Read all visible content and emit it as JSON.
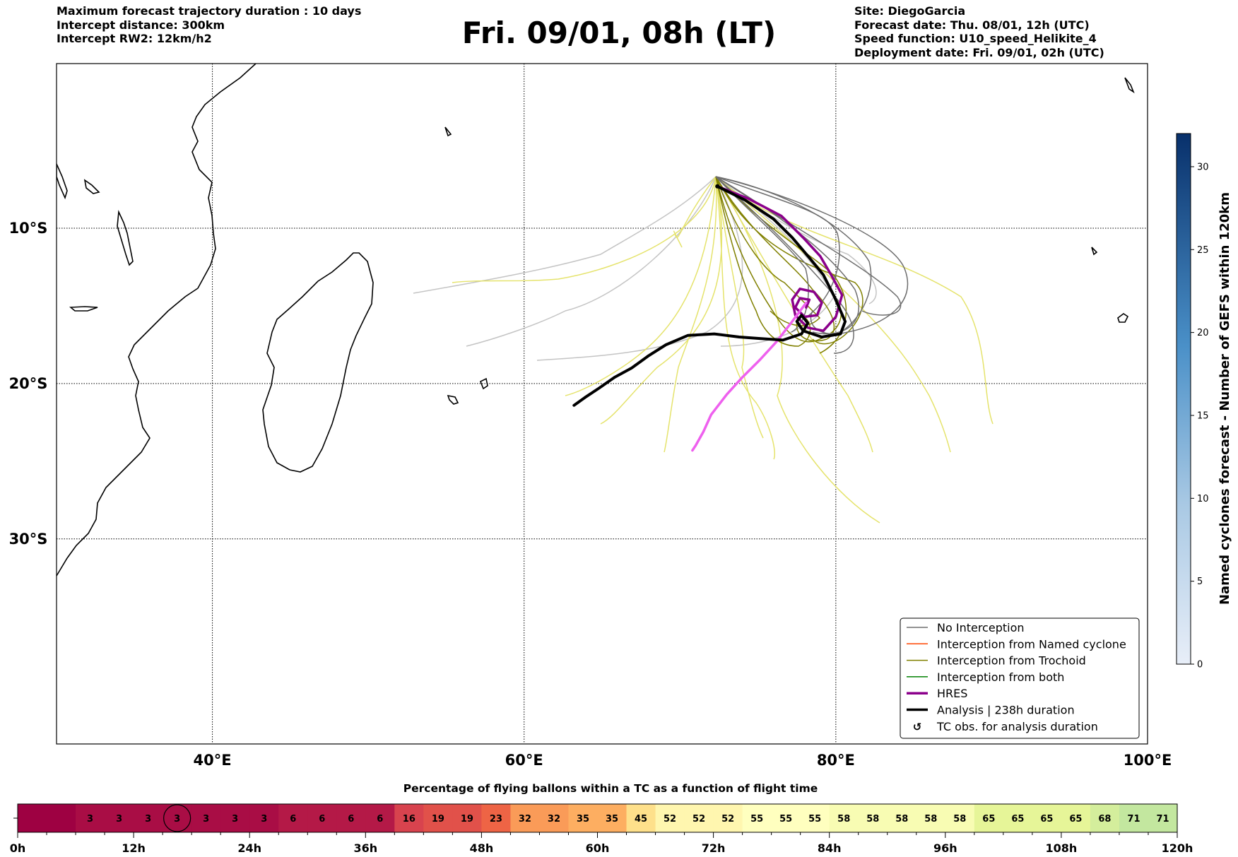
{
  "header_left": [
    "Maximum forecast trajectory duration : 10 days",
    "Intercept distance: 300km",
    "Intercept RW2: 12km/h2"
  ],
  "title": "Fri. 09/01, 08h (LT)",
  "header_right": [
    "Site: DiegoGarcia",
    "Forecast date: Thu. 08/01, 12h (UTC)",
    "Speed function: U10_speed_Helikite_4",
    "Deployment date: Fri. 09/01, 02h (UTC)"
  ],
  "colors": {
    "no_interception": "#6e6e6e",
    "light_gray": "#c4c4c4",
    "named_cyclone": "#ff4500",
    "trochoid": "#808000",
    "light_yellow": "#e5e36c",
    "both": "#008000",
    "hres": "#8b008b",
    "hres_light": "#ee60ee",
    "analysis": "#000000"
  },
  "legend": [
    {
      "label": "No Interception",
      "style": "thin",
      "color": "#6e6e6e"
    },
    {
      "label": "Interception from Named cyclone",
      "style": "thin",
      "color": "#ff4500"
    },
    {
      "label": "Interception from Trochoid",
      "style": "thin",
      "color": "#808000"
    },
    {
      "label": "Interception from both",
      "style": "thin",
      "color": "#008000"
    },
    {
      "label": "HRES",
      "style": "thick",
      "color": "#8b008b"
    },
    {
      "label": "Analysis | 238h duration",
      "style": "thick",
      "color": "#000000"
    },
    {
      "label": "TC obs. for analysis duration",
      "style": "glyph",
      "color": "#000000",
      "glyph": "↺"
    }
  ],
  "chart_data": [
    {
      "type": "map",
      "title": "Fri. 09/01, 08h (LT)",
      "lon_range": [
        30,
        100
      ],
      "lat_range": [
        -43.2,
        0.6
      ],
      "x_ticks": [
        {
          "lon": 40,
          "label": "40°E"
        },
        {
          "lon": 60,
          "label": "60°E"
        },
        {
          "lon": 80,
          "label": "80°E"
        },
        {
          "lon": 100,
          "label": "100°E"
        }
      ],
      "y_ticks": [
        {
          "lat": -10,
          "label": "10°S"
        },
        {
          "lat": -20,
          "label": "20°S"
        },
        {
          "lat": -30,
          "label": "30°S"
        }
      ],
      "grid": true,
      "launch_site": [
        72.4,
        -7.3
      ],
      "series": [
        {
          "name": "HRES",
          "color": "#8b008b",
          "width": 3.5,
          "points": [
            [
              72.4,
              -7.3
            ],
            [
              74.4,
              -8.1
            ],
            [
              76.5,
              -9.2
            ],
            [
              77.9,
              -10.6
            ],
            [
              79.0,
              -11.8
            ],
            [
              79.7,
              -13.0
            ],
            [
              80.4,
              -14.3
            ],
            [
              80.0,
              -15.7
            ],
            [
              79.2,
              -16.6
            ],
            [
              78.2,
              -16.4
            ],
            [
              77.4,
              -15.6
            ],
            [
              77.2,
              -14.6
            ],
            [
              77.7,
              -13.9
            ],
            [
              78.6,
              -14.1
            ],
            [
              79.1,
              -14.8
            ],
            [
              78.8,
              -15.6
            ],
            [
              78.0,
              -15.7
            ],
            [
              77.4,
              -15.1
            ],
            [
              77.7,
              -14.5
            ],
            [
              78.3,
              -14.6
            ],
            [
              78.1,
              -15.1
            ]
          ]
        },
        {
          "name": "HRES late",
          "color": "#ee60ee",
          "width": 3.5,
          "points": [
            [
              78.1,
              -14.8
            ],
            [
              77.2,
              -16.0
            ],
            [
              76.2,
              -17.3
            ],
            [
              75.1,
              -18.5
            ],
            [
              74.0,
              -19.6
            ],
            [
              73.0,
              -20.7
            ],
            [
              72.0,
              -22.0
            ],
            [
              71.5,
              -23.1
            ],
            [
              71.0,
              -24.0
            ],
            [
              70.8,
              -24.3
            ]
          ]
        },
        {
          "name": "Analysis",
          "color": "#000000",
          "width": 4,
          "points": [
            [
              72.4,
              -7.3
            ],
            [
              74.2,
              -8.2
            ],
            [
              76.0,
              -9.4
            ],
            [
              77.2,
              -10.6
            ],
            [
              78.3,
              -11.9
            ],
            [
              79.2,
              -13.0
            ],
            [
              79.9,
              -14.4
            ],
            [
              80.6,
              -16.0
            ],
            [
              80.3,
              -16.8
            ],
            [
              79.1,
              -17.0
            ],
            [
              77.9,
              -16.6
            ],
            [
              77.5,
              -16.0
            ],
            [
              77.8,
              -15.6
            ],
            [
              78.2,
              -16.1
            ],
            [
              77.8,
              -16.8
            ],
            [
              76.6,
              -17.2
            ],
            [
              75.2,
              -17.1
            ],
            [
              73.8,
              -17.0
            ],
            [
              72.2,
              -16.8
            ],
            [
              70.5,
              -16.9
            ],
            [
              69.1,
              -17.5
            ],
            [
              68.0,
              -18.2
            ],
            [
              66.9,
              -19.0
            ],
            [
              65.8,
              -19.6
            ],
            [
              64.8,
              -20.3
            ],
            [
              63.9,
              -20.9
            ],
            [
              63.2,
              -21.4
            ]
          ]
        }
      ],
      "named_cyclones_colorbar": {
        "label": "Named cyclones forecast - Number of GEFS within 120km",
        "range": [
          0,
          32
        ],
        "ticks": [
          0,
          5,
          10,
          15,
          20,
          25,
          30
        ]
      }
    },
    {
      "type": "heatmap",
      "title": "Percentage of flying ballons within a TC as a function of flight time",
      "x_range_hours": [
        0,
        120
      ],
      "x_ticks": [
        "0h",
        "12h",
        "24h",
        "36h",
        "48h",
        "60h",
        "72h",
        "84h",
        "96h",
        "108h",
        "120h"
      ],
      "values": [
        0,
        0,
        3,
        3,
        3,
        3,
        3,
        3,
        3,
        6,
        6,
        6,
        6,
        16,
        19,
        19,
        23,
        32,
        32,
        35,
        35,
        45,
        52,
        52,
        52,
        55,
        55,
        55,
        58,
        58,
        58,
        58,
        58,
        65,
        65,
        65,
        65,
        68,
        71,
        71
      ],
      "circled_index": 5
    }
  ]
}
